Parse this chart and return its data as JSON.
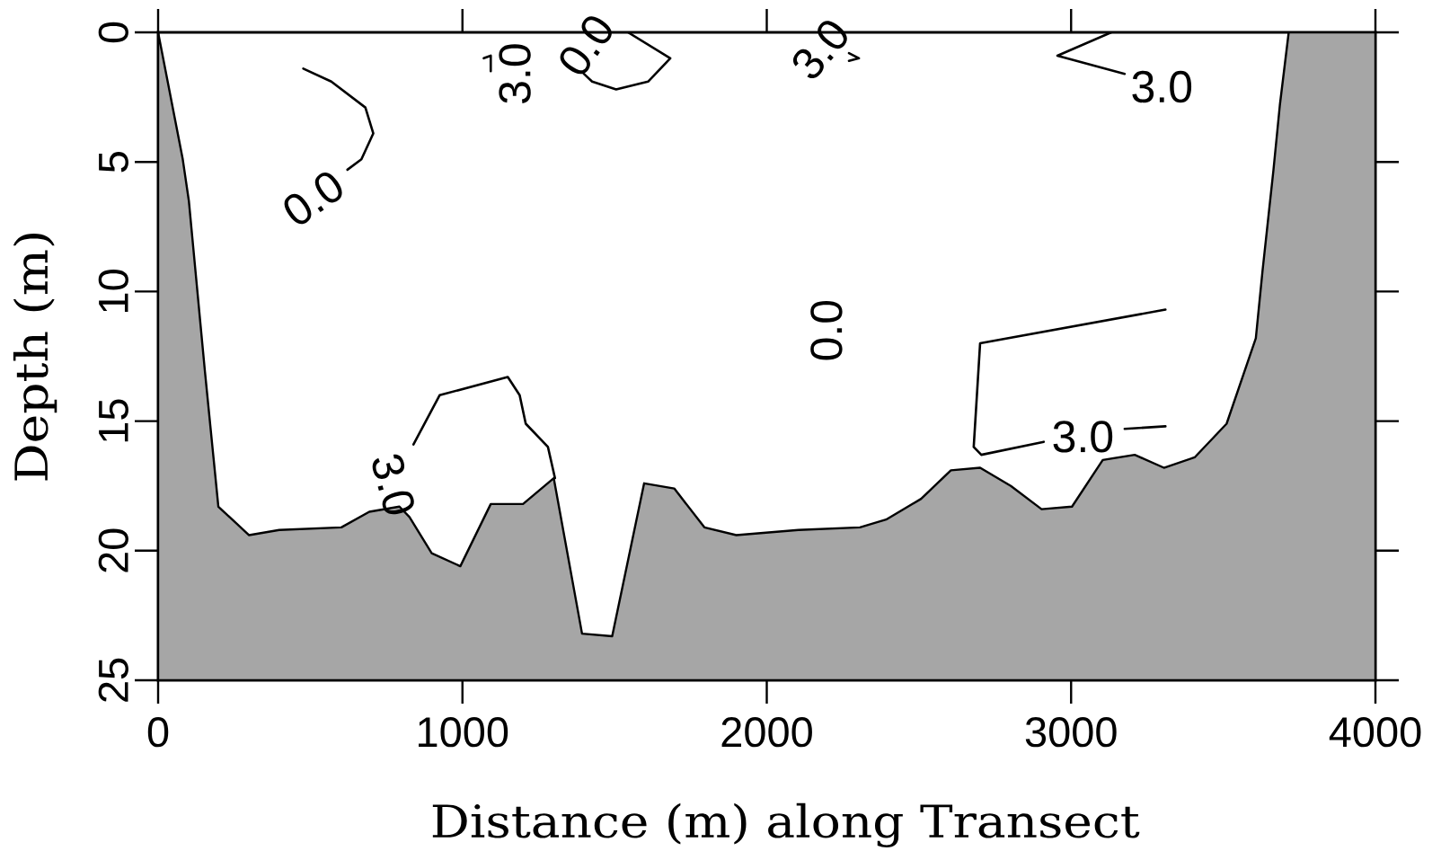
{
  "chart_data": {
    "type": "line",
    "xlabel": "Distance (m) along Transect",
    "ylabel": "Depth (m)",
    "xlim": [
      0,
      4000
    ],
    "ylim": [
      25,
      0
    ],
    "xticks": [
      0,
      1000,
      2000,
      3000,
      4000
    ],
    "yticks": [
      0,
      5,
      10,
      15,
      20,
      25
    ],
    "marker": "none",
    "line_style": "solid",
    "series": [
      {
        "type": "area",
        "color": "#a6a6a6",
        "x": [
          0,
          0,
          81,
          101,
          154,
          198,
          299,
          398,
          602,
          694,
          793,
          826,
          899,
          993,
          1093,
          1199,
          1300,
          1393,
          1492,
          1597,
          1696,
          1795,
          1900,
          2104,
          2306,
          2392,
          2507,
          2605,
          2701,
          2802,
          2903,
          3003,
          3104,
          3209,
          3305,
          3406,
          3511,
          3607,
          3629,
          3665,
          3686,
          3715,
          4000,
          4000
        ],
        "values": [
          25,
          0,
          4.9,
          6.5,
          13.1,
          18.3,
          19.4,
          19.2,
          19.1,
          18.5,
          18.3,
          18.7,
          20.1,
          20.6,
          18.2,
          18.2,
          17.2,
          23.2,
          23.3,
          17.4,
          17.6,
          19.1,
          19.4,
          19.2,
          19.1,
          18.8,
          18.0,
          16.9,
          16.8,
          17.5,
          18.4,
          18.3,
          16.5,
          16.3,
          16.8,
          16.4,
          15.1,
          11.8,
          9.2,
          5.3,
          2.8,
          0,
          0,
          25
        ]
      },
      {
        "color": "#000000",
        "x": [
          477,
          569,
          681,
          707,
          668,
          622
        ],
        "values": [
          1.4,
          1.9,
          2.9,
          3.9,
          4.9,
          5.3
        ]
      },
      {
        "color": "#000000",
        "x": [
          1399,
          1426,
          1505,
          1610,
          1683,
          1544
        ],
        "values": [
          1.6,
          1.9,
          2.2,
          1.9,
          1.0,
          0.0
        ]
      },
      {
        "color": "#000000",
        "x": [
          1070,
          1093,
          1093
        ],
        "values": [
          1.0,
          0.9,
          1.5
        ]
      },
      {
        "color": "#000000",
        "x": [
          2270,
          2303,
          2270
        ],
        "values": [
          0.8,
          1.0,
          1.1
        ]
      },
      {
        "color": "#000000",
        "x": [
          3132,
          2955,
          3176
        ],
        "values": [
          0.0,
          0.9,
          1.6
        ]
      },
      {
        "color": "#000000",
        "x": [
          839,
          925,
          1149,
          1188,
          1208,
          1281,
          1304
        ],
        "values": [
          15.9,
          14.0,
          13.3,
          14.0,
          15.1,
          16.0,
          17.2
        ]
      },
      {
        "color": "#000000",
        "x": [
          3310,
          2701,
          2680,
          2705,
          2910
        ],
        "values": [
          10.7,
          12.0,
          16.0,
          16.3,
          15.8
        ]
      },
      {
        "color": "#000000",
        "x": [
          3176,
          3310
        ],
        "values": [
          15.3,
          15.2
        ]
      }
    ],
    "annotations": [
      {
        "text": "0.0",
        "x": 622,
        "y": 5.3
      },
      {
        "text": "3.0",
        "x": 1093,
        "y": 1.5
      },
      {
        "text": "0.0",
        "x": 1399,
        "y": 1.6
      },
      {
        "text": "3.0",
        "x": 2270,
        "y": 0.8
      },
      {
        "text": "3.0",
        "x": 3176,
        "y": 1.6
      },
      "0.0",
      {
        "text": "3.0",
        "x": 839,
        "y": 15.9
      },
      {
        "text": "3.0",
        "x": 2910,
        "y": 15.8
      }
    ]
  }
}
